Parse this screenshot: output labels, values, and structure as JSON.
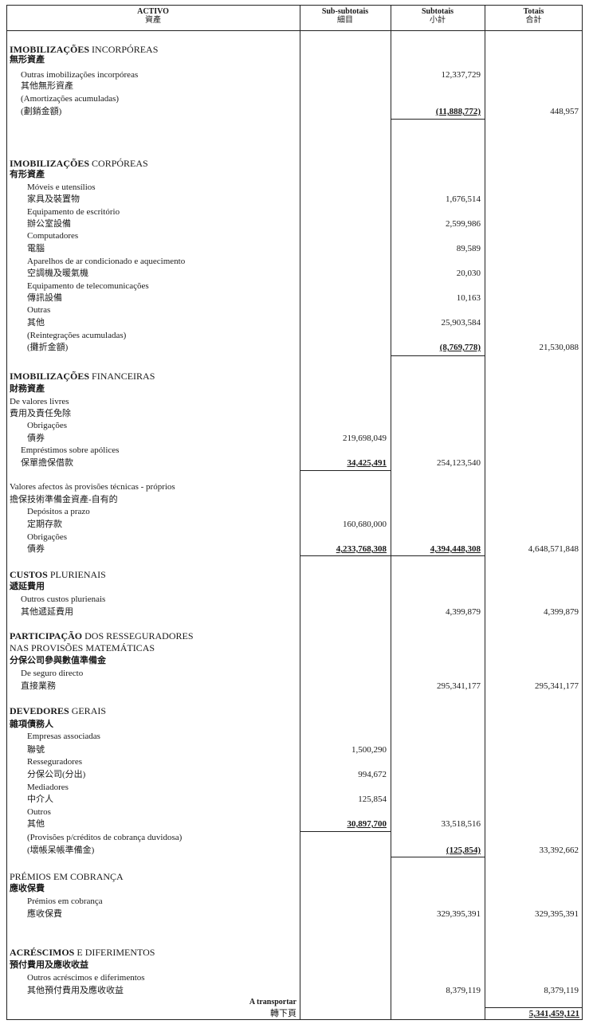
{
  "header": {
    "col1": {
      "pt": "ACTIVO",
      "zh": "資產"
    },
    "col2": {
      "pt": "Sub-subtotais",
      "zh": "細目"
    },
    "col3": {
      "pt": "Subtotais",
      "zh": "小計"
    },
    "col4": {
      "pt": "Totais",
      "zh": "合計"
    }
  },
  "rows": [
    {
      "bold": "IMOBILIZAÇÕES",
      "text": " INCORPÓREAS",
      "level": 0,
      "heading": true
    },
    {
      "text": "無形資產",
      "level": 0,
      "headingzh": true
    },
    {
      "text": "Outras imobilizações incorpóreas",
      "level": 1,
      "subtotal": "12,337,729"
    },
    {
      "text": "其他無形資產",
      "level": 1
    },
    {
      "text": "(Amortizações acumuladas)",
      "level": 1
    },
    {
      "text": "(劃銷金額)",
      "level": 1,
      "subtotal": "(11,888,772)",
      "subtotal_ul": true,
      "total": "448,957"
    },
    {
      "bold": "IMOBILIZAÇÕES",
      "text": " CORPÓREAS",
      "level": 0,
      "heading": true
    },
    {
      "text": "有形資產",
      "level": 0,
      "headingzh": true
    },
    {
      "text": "Móveis e utensílios",
      "level": 2
    },
    {
      "text": "家具及裝置物",
      "level": 2,
      "subtotal": "1,676,514"
    },
    {
      "text": "Equipamento de escritório",
      "level": 2
    },
    {
      "text": "辦公室設備",
      "level": 2,
      "subtotal": "2,599,986"
    },
    {
      "text": "Computadores",
      "level": 2
    },
    {
      "text": "電腦",
      "level": 2,
      "subtotal": "89,589"
    },
    {
      "text": "Aparelhos de ar condicionado e aquecimento",
      "level": 2
    },
    {
      "text": "空調機及暖氣機",
      "level": 2,
      "subtotal": "20,030"
    },
    {
      "text": "Equipamento de telecomunicações",
      "level": 2
    },
    {
      "text": "傳訊設備",
      "level": 2,
      "subtotal": "10,163"
    },
    {
      "text": "Outras",
      "level": 2
    },
    {
      "text": "其他",
      "level": 2,
      "subtotal": "25,903,584"
    },
    {
      "text": "(Reintegrações acumuladas)",
      "level": 2
    },
    {
      "text": "(攤折金額)",
      "level": 2,
      "subtotal": "(8,769,778)",
      "subtotal_ul": true,
      "total": "21,530,088"
    },
    {
      "bold": "IMOBILIZAÇÕES",
      "text": " FINANCEIRAS",
      "level": 0,
      "heading": true
    },
    {
      "text": "財務資產",
      "level": 0,
      "headingzh": true
    },
    {
      "text": "De valores livres",
      "level": 0
    },
    {
      "text": "費用及責任免除",
      "level": 0
    },
    {
      "text": "Obrigações",
      "level": 2
    },
    {
      "text": "債券",
      "level": 2,
      "sub": "219,698,049"
    },
    {
      "text": "Empréstimos sobre apólices",
      "level": 1
    },
    {
      "text": "保單擔保借款",
      "level": 1,
      "sub": "34,425,491",
      "sub_ul": true,
      "subtotal": "254,123,540"
    },
    {
      "text": "Valores afectos às provisões técnicas - próprios",
      "level": 0
    },
    {
      "text": "擔保技術準備金資產-自有的",
      "level": 0
    },
    {
      "text": "Depósitos a prazo",
      "level": 2
    },
    {
      "text": "定期存款",
      "level": 2,
      "sub": "160,680,000"
    },
    {
      "text": "Obrigações",
      "level": 2
    },
    {
      "text": "債券",
      "level": 2,
      "sub": "4,233,768,308",
      "sub_ul": true,
      "subtotal": "4,394,448,308",
      "subtotal_ul": true,
      "total": "4,648,571,848"
    },
    {
      "bold": "CUSTOS",
      "text": " PLURIENAIS",
      "level": 0,
      "heading": true
    },
    {
      "text": "遞延費用",
      "level": 0,
      "headingzh": true
    },
    {
      "text": "Outros custos plurienais",
      "level": 1
    },
    {
      "text": "其他遞延費用",
      "level": 1,
      "subtotal": "4,399,879",
      "total": "4,399,879"
    },
    {
      "bold": "PARTICIPAÇÃO",
      "text": " DOS RESSEGURADORES",
      "level": 0,
      "heading": true
    },
    {
      "text": "NAS PROVISÕES MATEMÁTICAS",
      "level": 0,
      "heading": true
    },
    {
      "text": "分保公司參與數值準備金",
      "level": 0,
      "headingzh": true
    },
    {
      "text": "De seguro directo",
      "level": 1
    },
    {
      "text": "直接業務",
      "level": 1,
      "subtotal": "295,341,177",
      "total": "295,341,177"
    },
    {
      "bold": "DEVEDORES",
      "text": " GERAIS",
      "level": 0,
      "heading": true
    },
    {
      "text": "雜項債務人",
      "level": 0,
      "headingzh": true
    },
    {
      "text": "Empresas associadas",
      "level": 2
    },
    {
      "text": "聯號",
      "level": 2,
      "sub": "1,500,290"
    },
    {
      "text": "Resseguradores",
      "level": 2
    },
    {
      "text": "分保公司(分出)",
      "level": 2,
      "sub": "994,672"
    },
    {
      "text": "Mediadores",
      "level": 2
    },
    {
      "text": "中介人",
      "level": 2,
      "sub": "125,854"
    },
    {
      "text": "Outros",
      "level": 2
    },
    {
      "text": "其他",
      "level": 2,
      "sub": "30,897,700",
      "sub_ul": true,
      "subtotal": "33,518,516"
    },
    {
      "text": "(Provisões p/créditos de cobrança duvidosa)",
      "level": 2
    },
    {
      "text": "(壞帳呆帳準備金)",
      "level": 2,
      "subtotal": "(125,854)",
      "subtotal_ul": true,
      "total": "33,392,662"
    },
    {
      "text": "PRÉMIOS EM COBRANÇA",
      "level": 0,
      "heading": true
    },
    {
      "text": "應收保費",
      "level": 0,
      "headingzh": true
    },
    {
      "text": "Prémios em cobrança",
      "level": 2
    },
    {
      "text": "應收保費",
      "level": 2,
      "subtotal": "329,395,391",
      "total": "329,395,391"
    },
    {
      "bold": "ACRÉSCIMOS",
      "text": " E  DIFERIMENTOS",
      "level": 0,
      "heading": true
    },
    {
      "text": "預付費用及應收收益",
      "level": 0,
      "headingzh": true
    },
    {
      "text": "Outros acréscimos e diferimentos",
      "level": 2
    },
    {
      "text": "其他預付費用及應收收益",
      "level": 2,
      "subtotal": "8,379,119",
      "total": "8,379,119"
    }
  ],
  "footer": {
    "carry_pt": "A transportar",
    "carry_zh": "轉下頁",
    "carry_total": "5,341,459,121"
  }
}
